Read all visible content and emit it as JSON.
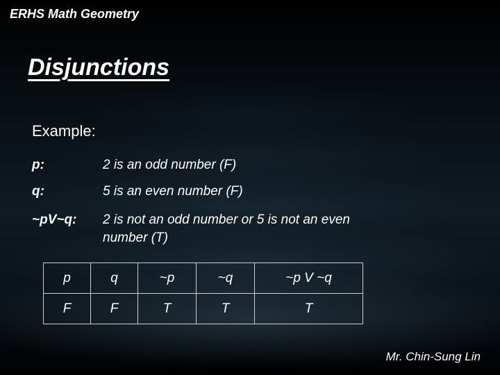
{
  "course": "ERHS Math Geometry",
  "title": "Disjunctions",
  "example_label": "Example:",
  "statements": {
    "p": {
      "key": "p:",
      "text": "2 is an odd number (F)"
    },
    "q": {
      "key": "q:",
      "text": "5 is an even number (F)"
    },
    "disj": {
      "key": "~pV~q:",
      "text1": "2 is not an odd number or 5 is not an even",
      "text2": "number (T)"
    }
  },
  "table": {
    "headers": [
      "p",
      "q",
      "~p",
      "~q",
      "~p V ~q"
    ],
    "row": [
      "F",
      "F",
      "T",
      "T",
      "T"
    ],
    "col_widths": [
      "col-narrow",
      "col-narrow",
      "col-mid",
      "col-mid",
      "col-wide"
    ],
    "border_color": "#cfcfcf",
    "fontsize": 19
  },
  "author": "Mr. Chin-Sung Lin",
  "colors": {
    "text": "#ffffff",
    "bg_dark": "#000000",
    "bg_ripple": "#2a4a5a"
  },
  "typography": {
    "course_fontsize": 18,
    "title_fontsize": 34,
    "example_fontsize": 22,
    "body_fontsize": 19,
    "author_fontsize": 17
  }
}
